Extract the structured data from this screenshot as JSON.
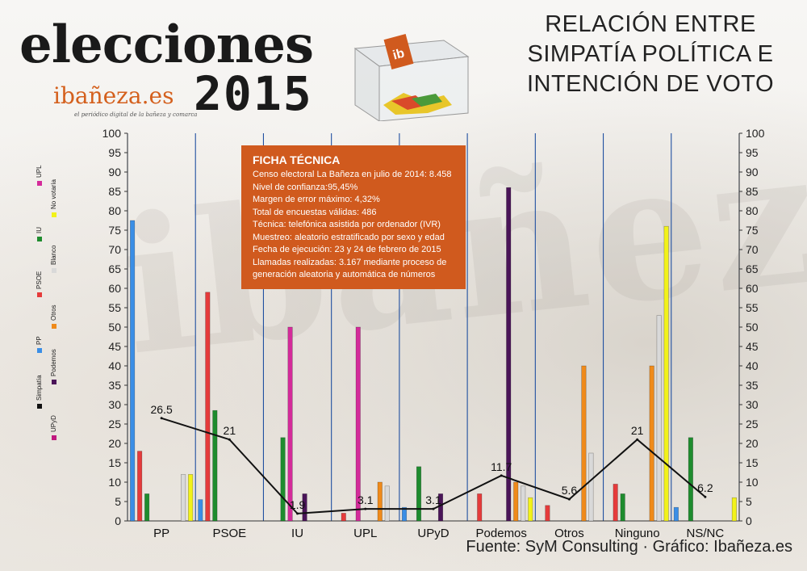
{
  "header": {
    "logo_title": "elecciones",
    "logo_year": "2015",
    "logo_site": "ibañeza.es",
    "logo_tagline": "el periódico digital de la bañeza y comarca",
    "ballot_label": "ibañeza.es",
    "title_lines": [
      "RELACIÓN ENTRE",
      "SIMPATÍA POLÍTICA E",
      "INTENCIÓN DE VOTO"
    ]
  },
  "ficha": {
    "title": "FICHA TÉCNICA",
    "lines": [
      "Censo electoral La Bañeza en julio de 2014: 8.458",
      "Nivel de confianza:95,45%",
      "Margen de error máximo: 4,32%",
      "Total de encuestas válidas: 486",
      "Técnica: telefónica asistida por ordenador (IVR)",
      "Muestreo: aleatorio estratificado por sexo y edad",
      "Fecha de ejecución: 23 y 24 de febrero de 2015",
      "Llamadas realizadas: 3.167 mediante proceso de",
      "generación aleatoria y automática de números"
    ]
  },
  "footer": "Fuente: SyM Consulting · Gráfico: Ibañeza.es",
  "chart_data": {
    "type": "bar",
    "categories": [
      "PP",
      "PSOE",
      "IU",
      "UPL",
      "UPyD",
      "Podemos",
      "Otros",
      "Ninguno",
      "NS/NC"
    ],
    "ylim": [
      0,
      100
    ],
    "y_ticks": [
      0,
      5,
      10,
      15,
      20,
      25,
      30,
      35,
      40,
      45,
      50,
      55,
      60,
      65,
      70,
      75,
      80,
      85,
      90,
      95,
      100
    ],
    "grid": "vertical",
    "legend_position": "left (rotated)",
    "colors": {
      "PP": "#3a8ee6",
      "PSOE": "#e53b3b",
      "IU": "#1e8c2e",
      "UPL": "#d42b9a",
      "UPyD": "#c0187f",
      "Podemos": "#4a1458",
      "Otros": "#ef8a1a",
      "Blanco": "#d9d9d9",
      "No votaría": "#f2f21a",
      "Simpatía": "#111111"
    },
    "series": [
      {
        "name": "PP",
        "values": [
          77.5,
          5.5,
          0,
          0,
          3.5,
          0,
          0,
          0,
          3.5
        ]
      },
      {
        "name": "PSOE",
        "values": [
          18,
          59,
          0,
          2,
          0,
          7,
          4,
          9.5,
          0
        ]
      },
      {
        "name": "IU",
        "values": [
          7,
          28.5,
          21.5,
          0,
          14,
          0,
          0,
          7,
          21.5
        ]
      },
      {
        "name": "UPL",
        "values": [
          0,
          0,
          50,
          50,
          0,
          0,
          0,
          0,
          0
        ]
      },
      {
        "name": "UPyD",
        "values": [
          0,
          0,
          0,
          0,
          0,
          0,
          0,
          0,
          0
        ]
      },
      {
        "name": "Podemos",
        "values": [
          0,
          0,
          7,
          0,
          7,
          86,
          0,
          0,
          0
        ]
      },
      {
        "name": "Otros",
        "values": [
          0,
          0,
          0,
          10,
          0,
          10,
          40,
          40,
          0
        ]
      },
      {
        "name": "Blanco",
        "values": [
          12,
          0,
          0,
          9,
          0,
          9,
          17.5,
          53,
          0
        ]
      },
      {
        "name": "No votaría",
        "values": [
          12,
          0,
          0,
          0,
          0,
          6,
          0,
          76,
          6
        ]
      }
    ],
    "line_series": {
      "name": "Simpatía",
      "values": [
        26.5,
        21,
        1.9,
        3.1,
        3.1,
        11.7,
        5.6,
        21,
        6.2
      ],
      "labels": [
        "26.5",
        "21",
        "1.9",
        "3.1",
        "3.1",
        "11.7",
        "5.6",
        "21",
        "6.2"
      ]
    },
    "legend": [
      "Simpatía",
      "PP",
      "PSOE",
      "IU",
      "UPL",
      "UPyD",
      "Podemos",
      "Otros",
      "Blanco",
      "No votaría"
    ]
  }
}
